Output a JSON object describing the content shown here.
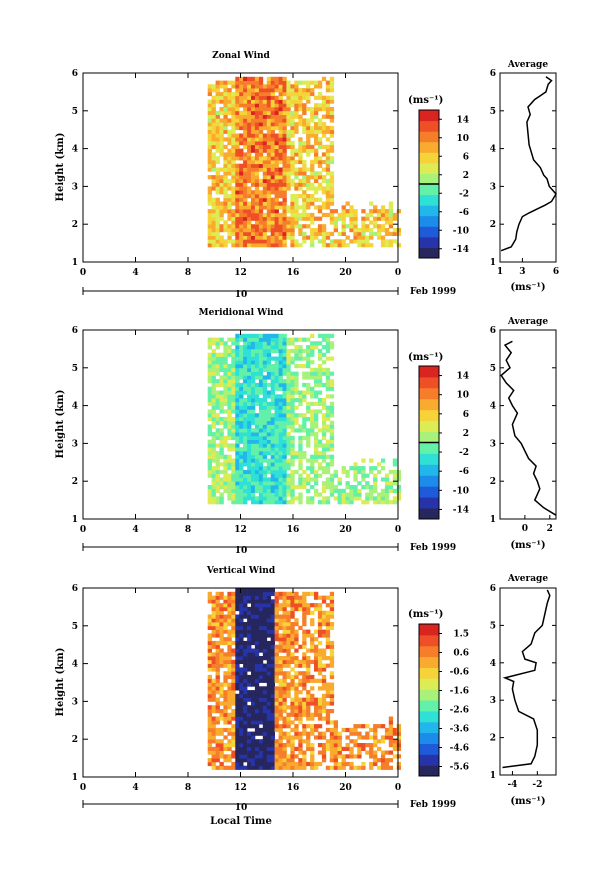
{
  "chart_data": [
    {
      "type": "heatmap",
      "id": "zonal",
      "title": "Zonal Wind",
      "ylabel": "Height (km)",
      "xlabel": "",
      "ylim": [
        1,
        6
      ],
      "xlim": [
        0,
        24
      ],
      "xticks": [
        "0",
        "4",
        "8",
        "12",
        "16",
        "20",
        "0"
      ],
      "yticks": [
        "1",
        "2",
        "3",
        "4",
        "5",
        "6"
      ],
      "date_axis": {
        "label": "10",
        "suffix": "Feb 1999"
      },
      "colorbar": {
        "unit": "(ms⁻¹)",
        "labels": [
          "14",
          "10",
          "6",
          "2",
          "-2",
          "-6",
          "-10",
          "-14"
        ],
        "range": [
          -16,
          16
        ],
        "zero_line": 0
      },
      "data_region": {
        "t_start": 9.5,
        "t_end": 24,
        "h_start": 1.4,
        "h_end": 5.8,
        "core_t": [
          11.5,
          15.5
        ]
      },
      "field": {
        "mean_color": "yellow-orange",
        "base": 6,
        "core_boost": 4,
        "noise": 4,
        "seed": 11
      },
      "profile": {
        "title": "Average",
        "xlabel": "(ms⁻¹)",
        "xticks": [
          "1",
          "3",
          "6"
        ],
        "xlim": [
          1,
          6
        ],
        "ylim": [
          1,
          6
        ],
        "points": [
          [
            1.1,
            1.3
          ],
          [
            2.0,
            1.4
          ],
          [
            2.4,
            1.6
          ],
          [
            2.5,
            1.8
          ],
          [
            2.7,
            2.0
          ],
          [
            3.0,
            2.2
          ],
          [
            3.6,
            2.3
          ],
          [
            4.3,
            2.4
          ],
          [
            5.0,
            2.5
          ],
          [
            5.6,
            2.6
          ],
          [
            6.0,
            2.8
          ],
          [
            5.4,
            3.0
          ],
          [
            5.2,
            3.2
          ],
          [
            4.9,
            3.3
          ],
          [
            4.6,
            3.5
          ],
          [
            4.0,
            3.7
          ],
          [
            3.8,
            3.9
          ],
          [
            3.6,
            4.1
          ],
          [
            3.5,
            4.4
          ],
          [
            3.4,
            4.7
          ],
          [
            3.7,
            4.9
          ],
          [
            3.5,
            5.1
          ],
          [
            4.1,
            5.3
          ],
          [
            4.6,
            5.4
          ],
          [
            5.1,
            5.5
          ],
          [
            5.3,
            5.7
          ],
          [
            5.6,
            5.8
          ],
          [
            5.1,
            5.9
          ]
        ]
      }
    },
    {
      "type": "heatmap",
      "id": "meridional",
      "title": "Meridional Wind",
      "ylabel": "Height (km)",
      "xlabel": "",
      "ylim": [
        1,
        6
      ],
      "xlim": [
        0,
        24
      ],
      "xticks": [
        "0",
        "4",
        "8",
        "12",
        "16",
        "20",
        "0"
      ],
      "yticks": [
        "1",
        "2",
        "3",
        "4",
        "5",
        "6"
      ],
      "date_axis": {
        "label": "10",
        "suffix": "Feb 1999"
      },
      "colorbar": {
        "unit": "(ms⁻¹)",
        "labels": [
          "14",
          "10",
          "6",
          "2",
          "-2",
          "-6",
          "-10",
          "-14"
        ],
        "range": [
          -16,
          16
        ],
        "zero_line": 0
      },
      "data_region": {
        "t_start": 9.5,
        "t_end": 24,
        "h_start": 1.4,
        "h_end": 5.8,
        "core_t": [
          11.5,
          15.5
        ]
      },
      "field": {
        "mean_color": "green-cyan",
        "base": 1,
        "core_boost": -4,
        "noise": 3,
        "seed": 29
      },
      "profile": {
        "title": "Average",
        "xlabel": "(ms⁻¹)",
        "xticks": [
          "0",
          "2"
        ],
        "xlim": [
          -2,
          2.5
        ],
        "ylim": [
          1,
          6
        ],
        "points": [
          [
            2.5,
            1.1
          ],
          [
            1.5,
            1.3
          ],
          [
            0.8,
            1.5
          ],
          [
            1.2,
            1.8
          ],
          [
            1.0,
            2.0
          ],
          [
            0.7,
            2.2
          ],
          [
            0.9,
            2.4
          ],
          [
            0.3,
            2.6
          ],
          [
            0.0,
            2.8
          ],
          [
            -0.3,
            3.0
          ],
          [
            -0.8,
            3.2
          ],
          [
            -1.0,
            3.5
          ],
          [
            -0.6,
            3.8
          ],
          [
            -1.0,
            4.0
          ],
          [
            -1.3,
            4.2
          ],
          [
            -0.9,
            4.4
          ],
          [
            -1.5,
            4.6
          ],
          [
            -1.9,
            4.8
          ],
          [
            -1.2,
            5.0
          ],
          [
            -1.5,
            5.2
          ],
          [
            -1.1,
            5.4
          ],
          [
            -1.6,
            5.6
          ],
          [
            -1.0,
            5.7
          ]
        ]
      }
    },
    {
      "type": "heatmap",
      "id": "vertical",
      "title": "Vertical Wind",
      "ylabel": "Height (km)",
      "xlabel": "Local Time",
      "ylim": [
        1,
        6
      ],
      "xlim": [
        0,
        24
      ],
      "xticks": [
        "0",
        "4",
        "8",
        "12",
        "16",
        "20",
        "0"
      ],
      "yticks": [
        "1",
        "2",
        "3",
        "4",
        "5",
        "6"
      ],
      "date_axis": {
        "label": "10",
        "suffix": "Feb 1999"
      },
      "colorbar": {
        "unit": "(ms⁻¹)",
        "labels": [
          "1.5",
          "0.6",
          "-0.6",
          "-1.6",
          "-2.6",
          "-3.6",
          "-4.6",
          "-5.6"
        ],
        "range": [
          -6,
          2
        ],
        "zero_line": null
      },
      "data_region": {
        "t_start": 9.5,
        "t_end": 24,
        "h_start": 1.2,
        "h_end": 5.9,
        "core_t": [
          11.5,
          14.5
        ]
      },
      "field": {
        "mean_color": "yellow-orange with dark-blue core",
        "base": 0.3,
        "core_boost": -6,
        "noise": 0.8,
        "seed": 47
      },
      "profile": {
        "title": "Average",
        "xlabel": "(ms⁻¹)",
        "xticks": [
          "-4",
          "-2"
        ],
        "xlim": [
          -5,
          -0.5
        ],
        "ylim": [
          1,
          6
        ],
        "points": [
          [
            -4.8,
            1.2
          ],
          [
            -2.5,
            1.3
          ],
          [
            -2.2,
            1.5
          ],
          [
            -2.0,
            1.8
          ],
          [
            -2.0,
            2.2
          ],
          [
            -2.3,
            2.5
          ],
          [
            -3.5,
            2.7
          ],
          [
            -3.8,
            3.0
          ],
          [
            -4.0,
            3.3
          ],
          [
            -3.9,
            3.5
          ],
          [
            -4.6,
            3.6
          ],
          [
            -2.2,
            3.8
          ],
          [
            -2.1,
            4.0
          ],
          [
            -3.0,
            4.1
          ],
          [
            -3.2,
            4.3
          ],
          [
            -2.5,
            4.5
          ],
          [
            -2.2,
            4.8
          ],
          [
            -1.6,
            5.0
          ],
          [
            -1.4,
            5.3
          ],
          [
            -1.2,
            5.6
          ],
          [
            -1.0,
            5.8
          ],
          [
            -1.2,
            5.95
          ]
        ]
      }
    }
  ],
  "colors": {
    "scale": [
      "#27275e",
      "#2733a8",
      "#1f5bd8",
      "#1c8bea",
      "#22b7ea",
      "#2fe0d6",
      "#63f0a8",
      "#a8f27a",
      "#ddec55",
      "#f7d33a",
      "#f9ab2f",
      "#f67e2a",
      "#ee4f27",
      "#d9241f"
    ]
  }
}
